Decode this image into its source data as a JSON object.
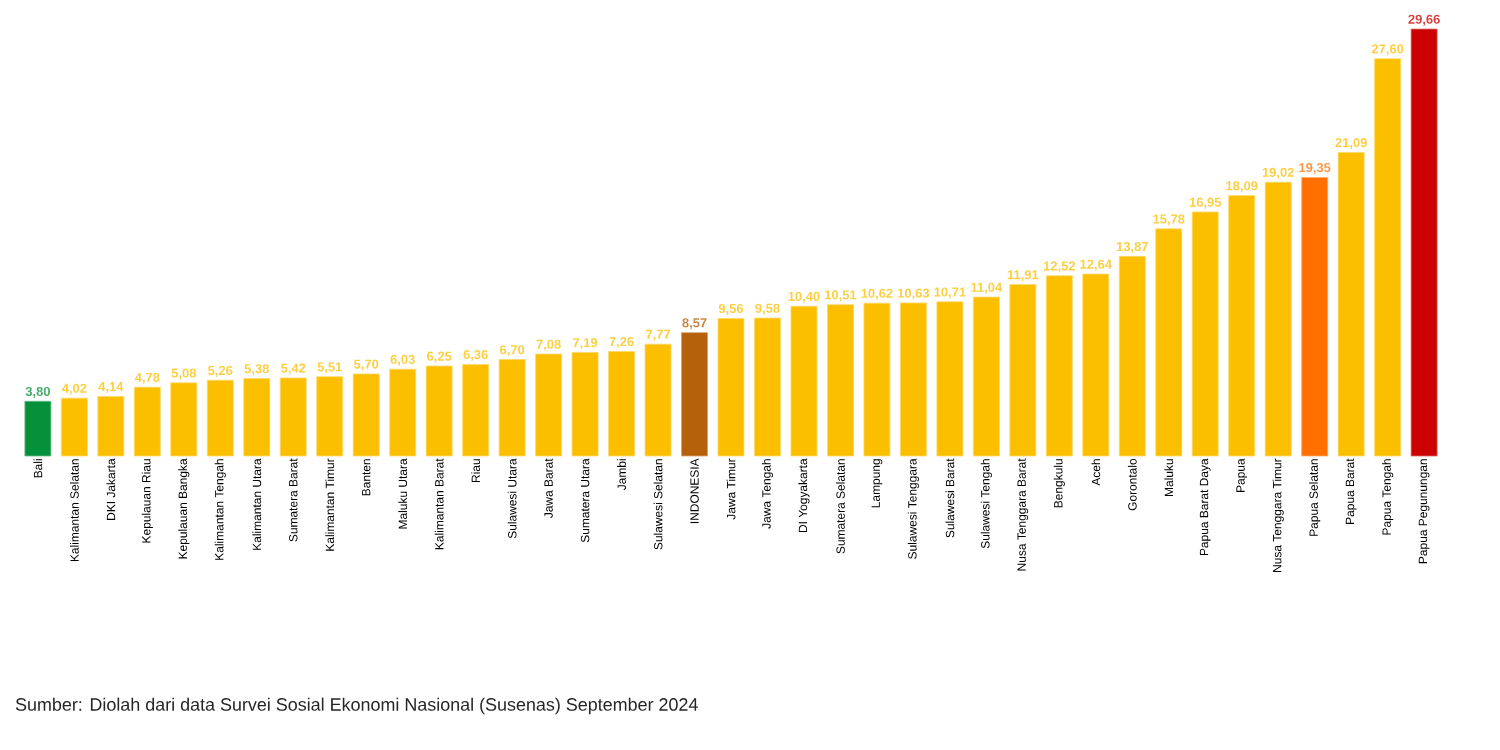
{
  "chart_data": {
    "type": "bar",
    "categories": [
      "Bali",
      "Kalimantan Selatan",
      "DKI Jakarta",
      "Kepulauan Riau",
      "Kepulauan Bangka",
      "Kalimantan Tengah",
      "Kalimantan Utara",
      "Sumatera Barat",
      "Kalimantan Timur",
      "Banten",
      "Maluku Utara",
      "Kalimantan Barat",
      "Riau",
      "Sulawesi Utara",
      "Jawa Barat",
      "Sumatera Utara",
      "Jambi",
      "Sulawesi Selatan",
      "INDONESIA",
      "Jawa Timur",
      "Jawa Tengah",
      "DI Yogyakarta",
      "Sumatera Selatan",
      "Lampung",
      "Sulawesi Tenggara",
      "Sulawesi Barat",
      "Sulawesi Tengah",
      "Nusa Tenggara Barat",
      "Bengkulu",
      "Aceh",
      "Gorontalo",
      "Maluku",
      "Papua Barat Daya",
      "Papua",
      "Nusa Tenggara Timur",
      "Papua Selatan",
      "Papua Barat",
      "Papua Tengah",
      "Papua Pegunungan"
    ],
    "values": [
      3.8,
      4.02,
      4.14,
      4.78,
      5.08,
      5.26,
      5.38,
      5.42,
      5.51,
      5.7,
      6.03,
      6.25,
      6.36,
      6.7,
      7.08,
      7.19,
      7.26,
      7.77,
      8.57,
      9.56,
      9.58,
      10.4,
      10.51,
      10.62,
      10.63,
      10.71,
      11.04,
      11.91,
      12.52,
      12.64,
      13.87,
      15.78,
      16.95,
      18.09,
      19.02,
      19.35,
      21.09,
      27.6,
      29.66
    ],
    "value_labels": [
      "3,80",
      "4,02",
      "4,14",
      "4,78",
      "5,08",
      "5,26",
      "5,38",
      "5,42",
      "5,51",
      "5,70",
      "6,03",
      "6,25",
      "6,36",
      "6,70",
      "7,08",
      "7,19",
      "7,26",
      "7,77",
      "8,57",
      "9,56",
      "9,58",
      "10,40",
      "10,51",
      "10,62",
      "10,63",
      "10,71",
      "11,04",
      "11,91",
      "12,52",
      "12,64",
      "13,87",
      "15,78",
      "16,95",
      "18,09",
      "19,02",
      "19,35",
      "21,09",
      "27,60",
      "29,66"
    ],
    "colors": [
      "#05913a",
      "#fbbf00",
      "#fbbf00",
      "#fbbf00",
      "#fbbf00",
      "#fbbf00",
      "#fbbf00",
      "#fbbf00",
      "#fbbf00",
      "#fbbf00",
      "#fbbf00",
      "#fbbf00",
      "#fbbf00",
      "#fbbf00",
      "#fbbf00",
      "#fbbf00",
      "#fbbf00",
      "#fbbf00",
      "#b5600a",
      "#fbbf00",
      "#fbbf00",
      "#fbbf00",
      "#fbbf00",
      "#fbbf00",
      "#fbbf00",
      "#fbbf00",
      "#fbbf00",
      "#fbbf00",
      "#fbbf00",
      "#fbbf00",
      "#fbbf00",
      "#fbbf00",
      "#fbbf00",
      "#fbbf00",
      "#fbbf00",
      "#ff7000",
      "#fbbf00",
      "#fbbf00",
      "#cc0000"
    ],
    "annotations": [
      "Sumber: Diolah dari data Survei Sosial Ekonomi Nasional (Susenas) September 2024"
    ]
  }
}
